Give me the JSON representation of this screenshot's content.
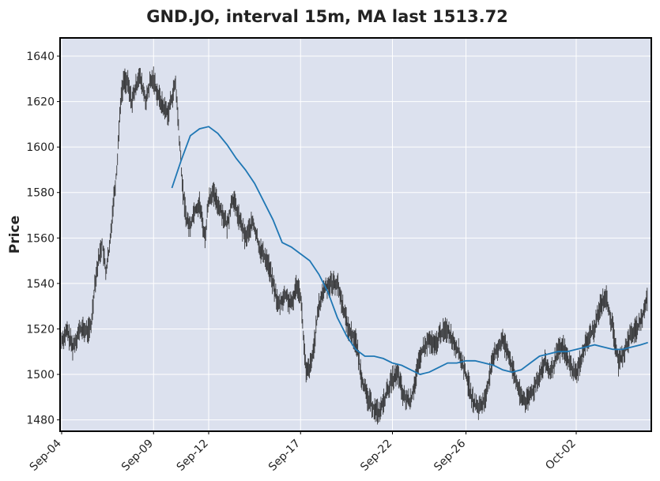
{
  "chart_data": {
    "type": "candlestick",
    "title": "GND.JO, interval 15m, MA last 1513.72",
    "xlabel": "",
    "ylabel": "Price",
    "ylim": [
      1475,
      1648
    ],
    "yticks": [
      1480,
      1500,
      1520,
      1540,
      1560,
      1580,
      1600,
      1620,
      1640
    ],
    "xticks": [
      "Sep-04",
      "Sep-09",
      "Sep-12",
      "Sep-17",
      "Sep-22",
      "Sep-26",
      "Oct-02"
    ],
    "xtick_index": [
      0,
      5,
      8,
      13,
      18,
      22,
      28
    ],
    "sessions": 32,
    "grid": true,
    "colors": {
      "background": "#dce1ee",
      "grid": "#ffffff",
      "candles": "#1a1a1a",
      "ma": "#1f77b4"
    },
    "series": [
      {
        "kind": "price",
        "x": [
          0.0,
          0.3,
          0.6,
          1.0,
          1.4,
          1.6,
          1.8,
          2.0,
          2.2,
          2.4,
          2.6,
          2.8,
          3.0,
          3.2,
          3.4,
          3.6,
          3.8,
          4.0,
          4.2,
          4.4,
          4.6,
          4.8,
          5.0,
          5.2,
          5.5,
          5.8,
          6.0,
          6.2,
          6.4,
          6.6,
          6.8,
          7.0,
          7.2,
          7.5,
          7.8,
          8.0,
          8.2,
          8.5,
          8.8,
          9.0,
          9.3,
          9.6,
          10.0,
          10.4,
          10.8,
          11.2,
          11.5,
          11.8,
          12.0,
          12.2,
          12.5,
          12.8,
          13.0,
          13.3,
          13.6,
          14.0,
          14.3,
          14.6,
          15.0,
          15.3,
          15.6,
          16.0,
          16.3,
          16.6,
          17.0,
          17.3,
          17.6,
          18.0,
          18.3,
          18.6,
          19.0,
          19.3,
          19.6,
          20.0,
          20.3,
          20.6,
          21.0,
          21.3,
          21.6,
          22.0,
          22.3,
          22.6,
          23.0,
          23.3,
          23.6,
          24.0,
          24.3,
          24.6,
          25.0,
          25.3,
          25.6,
          26.0,
          26.3,
          26.6,
          27.0,
          27.3,
          27.6,
          28.0,
          28.3,
          28.6,
          29.0,
          29.3,
          29.6,
          30.0,
          30.3,
          30.6,
          31.0,
          31.3,
          31.6,
          31.9
        ],
        "values": [
          1515,
          1519,
          1512,
          1520,
          1519,
          1521,
          1540,
          1550,
          1558,
          1545,
          1555,
          1575,
          1590,
          1620,
          1630,
          1628,
          1620,
          1625,
          1632,
          1626,
          1620,
          1628,
          1630,
          1624,
          1618,
          1615,
          1622,
          1628,
          1604,
          1580,
          1568,
          1565,
          1572,
          1575,
          1560,
          1577,
          1580,
          1575,
          1570,
          1565,
          1578,
          1570,
          1560,
          1567,
          1555,
          1550,
          1540,
          1530,
          1533,
          1535,
          1530,
          1540,
          1535,
          1500,
          1505,
          1530,
          1538,
          1540,
          1540,
          1530,
          1520,
          1515,
          1500,
          1490,
          1485,
          1483,
          1490,
          1498,
          1500,
          1490,
          1488,
          1500,
          1510,
          1515,
          1512,
          1518,
          1520,
          1515,
          1510,
          1500,
          1490,
          1485,
          1488,
          1500,
          1510,
          1515,
          1510,
          1500,
          1490,
          1488,
          1492,
          1500,
          1505,
          1500,
          1510,
          1512,
          1505,
          1500,
          1508,
          1515,
          1520,
          1530,
          1535,
          1520,
          1505,
          1510,
          1518,
          1520,
          1525,
          1535
        ]
      },
      {
        "kind": "moving-average",
        "x": [
          6.0,
          6.5,
          7.0,
          7.5,
          8.0,
          8.5,
          9.0,
          9.5,
          10.0,
          10.5,
          11.0,
          11.5,
          12.0,
          12.5,
          13.0,
          13.5,
          14.0,
          14.5,
          15.0,
          15.5,
          16.0,
          16.5,
          17.0,
          17.5,
          18.0,
          18.5,
          19.0,
          19.5,
          20.0,
          20.5,
          21.0,
          21.5,
          22.0,
          22.5,
          23.0,
          23.5,
          24.0,
          24.5,
          25.0,
          25.5,
          26.0,
          26.5,
          27.0,
          27.5,
          28.0,
          28.5,
          29.0,
          29.5,
          30.0,
          30.5,
          31.0,
          31.5,
          31.9
        ],
        "values": [
          1582,
          1594,
          1605,
          1608,
          1609,
          1606,
          1601,
          1595,
          1590,
          1584,
          1576,
          1568,
          1558,
          1556,
          1553,
          1550,
          1544,
          1536,
          1525,
          1517,
          1511,
          1508,
          1508,
          1507,
          1505,
          1504,
          1502,
          1500,
          1501,
          1503,
          1505,
          1505,
          1506,
          1506,
          1505,
          1504,
          1502,
          1501,
          1502,
          1505,
          1508,
          1509,
          1510,
          1510,
          1511,
          1512,
          1513,
          1512,
          1511,
          1511,
          1512,
          1513,
          1514
        ]
      }
    ]
  }
}
